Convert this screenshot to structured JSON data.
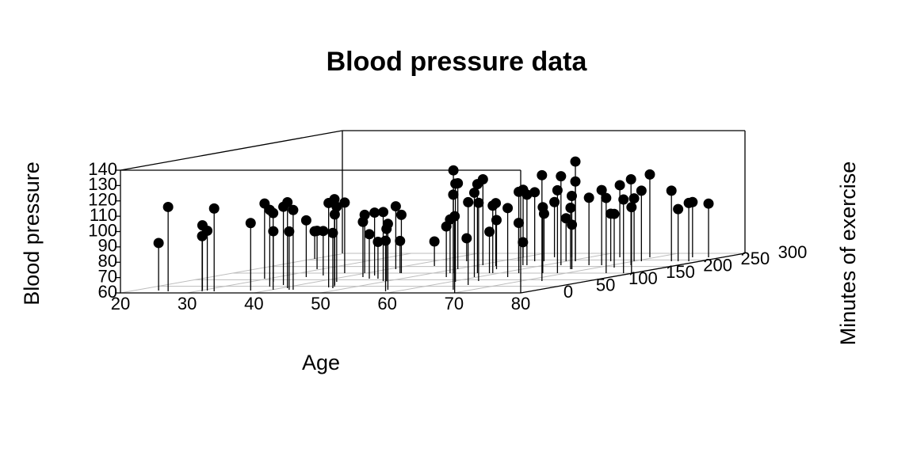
{
  "chart_data": {
    "type": "scatter3d",
    "title": "Blood pressure data",
    "x_label": "Age",
    "y_label": "Minutes of exercise",
    "z_label": "Blood pressure",
    "xlim": [
      20,
      80
    ],
    "ylim": [
      0,
      300
    ],
    "zlim": [
      60,
      140
    ],
    "xticks": [
      20,
      30,
      40,
      50,
      60,
      70,
      80
    ],
    "yticks": [
      0,
      50,
      100,
      150,
      200,
      250,
      300
    ],
    "zticks": [
      60,
      70,
      80,
      90,
      100,
      110,
      120,
      130,
      140
    ],
    "grid": true,
    "color": "#000000",
    "x": [
      23.7,
      25.8,
      30.9,
      29.6,
      31,
      32.7,
      37.5,
      29.5,
      37,
      40.2,
      33.5,
      37.7,
      41,
      42.6,
      43.2,
      34.4,
      20.2,
      29.3,
      35.6,
      46.5,
      47.8,
      46.7,
      45.4,
      43,
      36.8,
      42.9,
      39.8,
      45.2,
      43.3,
      46.5,
      49.3,
      58.4,
      49.8,
      57.4,
      41.1,
      45.1,
      45.3,
      44.2,
      55.4,
      52.6,
      67.2,
      53.1,
      60.8,
      70.1,
      50.4,
      45,
      65.4,
      59.6,
      56.7,
      50.8,
      63.6,
      58.5,
      59,
      53.4,
      56.2,
      64.6,
      52.8,
      62.9,
      50.1,
      56.8,
      57.4,
      55.2,
      73.1,
      66.5,
      56.6,
      54.8,
      68.7,
      62.5,
      59.9,
      67.3,
      57.4,
      67.5,
      61.3,
      61.3,
      66.7,
      68.6,
      76,
      66.6,
      72.5,
      64.6,
      78.6,
      73,
      70.1,
      79.8,
      71.2,
      69.1,
      75.7,
      76.7,
      78.3,
      75.5,
      77.9
    ],
    "y": [
      18,
      12,
      12,
      24,
      18,
      12,
      18,
      108,
      48,
      24,
      84,
      60,
      36,
      24,
      24,
      120,
      258,
      180,
      132,
      42,
      36,
      48,
      60,
      84,
      150,
      120,
      150,
      108,
      132,
      108,
      90,
      12,
      90,
      24,
      180,
      150,
      150,
      204,
      120,
      150,
      24,
      150,
      84,
      0,
      180,
      240,
      60,
      120,
      150,
      210,
      90,
      150,
      150,
      204,
      180,
      120,
      240,
      150,
      270,
      210,
      210,
      240,
      90,
      150,
      240,
      270,
      150,
      210,
      240,
      180,
      270,
      180,
      240,
      240,
      210,
      210,
      150,
      240,
      192,
      270,
      150,
      210,
      240,
      150,
      240,
      270,
      240,
      240,
      240,
      270,
      270
    ],
    "z": [
      91,
      115,
      96,
      102,
      99,
      114,
      104,
      109,
      110,
      110,
      93,
      111,
      116,
      98,
      112,
      97,
      78,
      85,
      89,
      115,
      96,
      117,
      106,
      109,
      106,
      96,
      98,
      89,
      101,
      84,
      105,
      93,
      94,
      103,
      101,
      81,
      98,
      76,
      93,
      95,
      122,
      127,
      124,
      110,
      116,
      75,
      114,
      115,
      118,
      116,
      111,
      87,
      104,
      101,
      92,
      105,
      85,
      113,
      104,
      75,
      106,
      105,
      129,
      103,
      91,
      96,
      114,
      118,
      88,
      100,
      100,
      89,
      125,
      112,
      104,
      109,
      109,
      91,
      95,
      107,
      108,
      116,
      101,
      103,
      106,
      114,
      106,
      94,
      98,
      96,
      95
    ]
  }
}
